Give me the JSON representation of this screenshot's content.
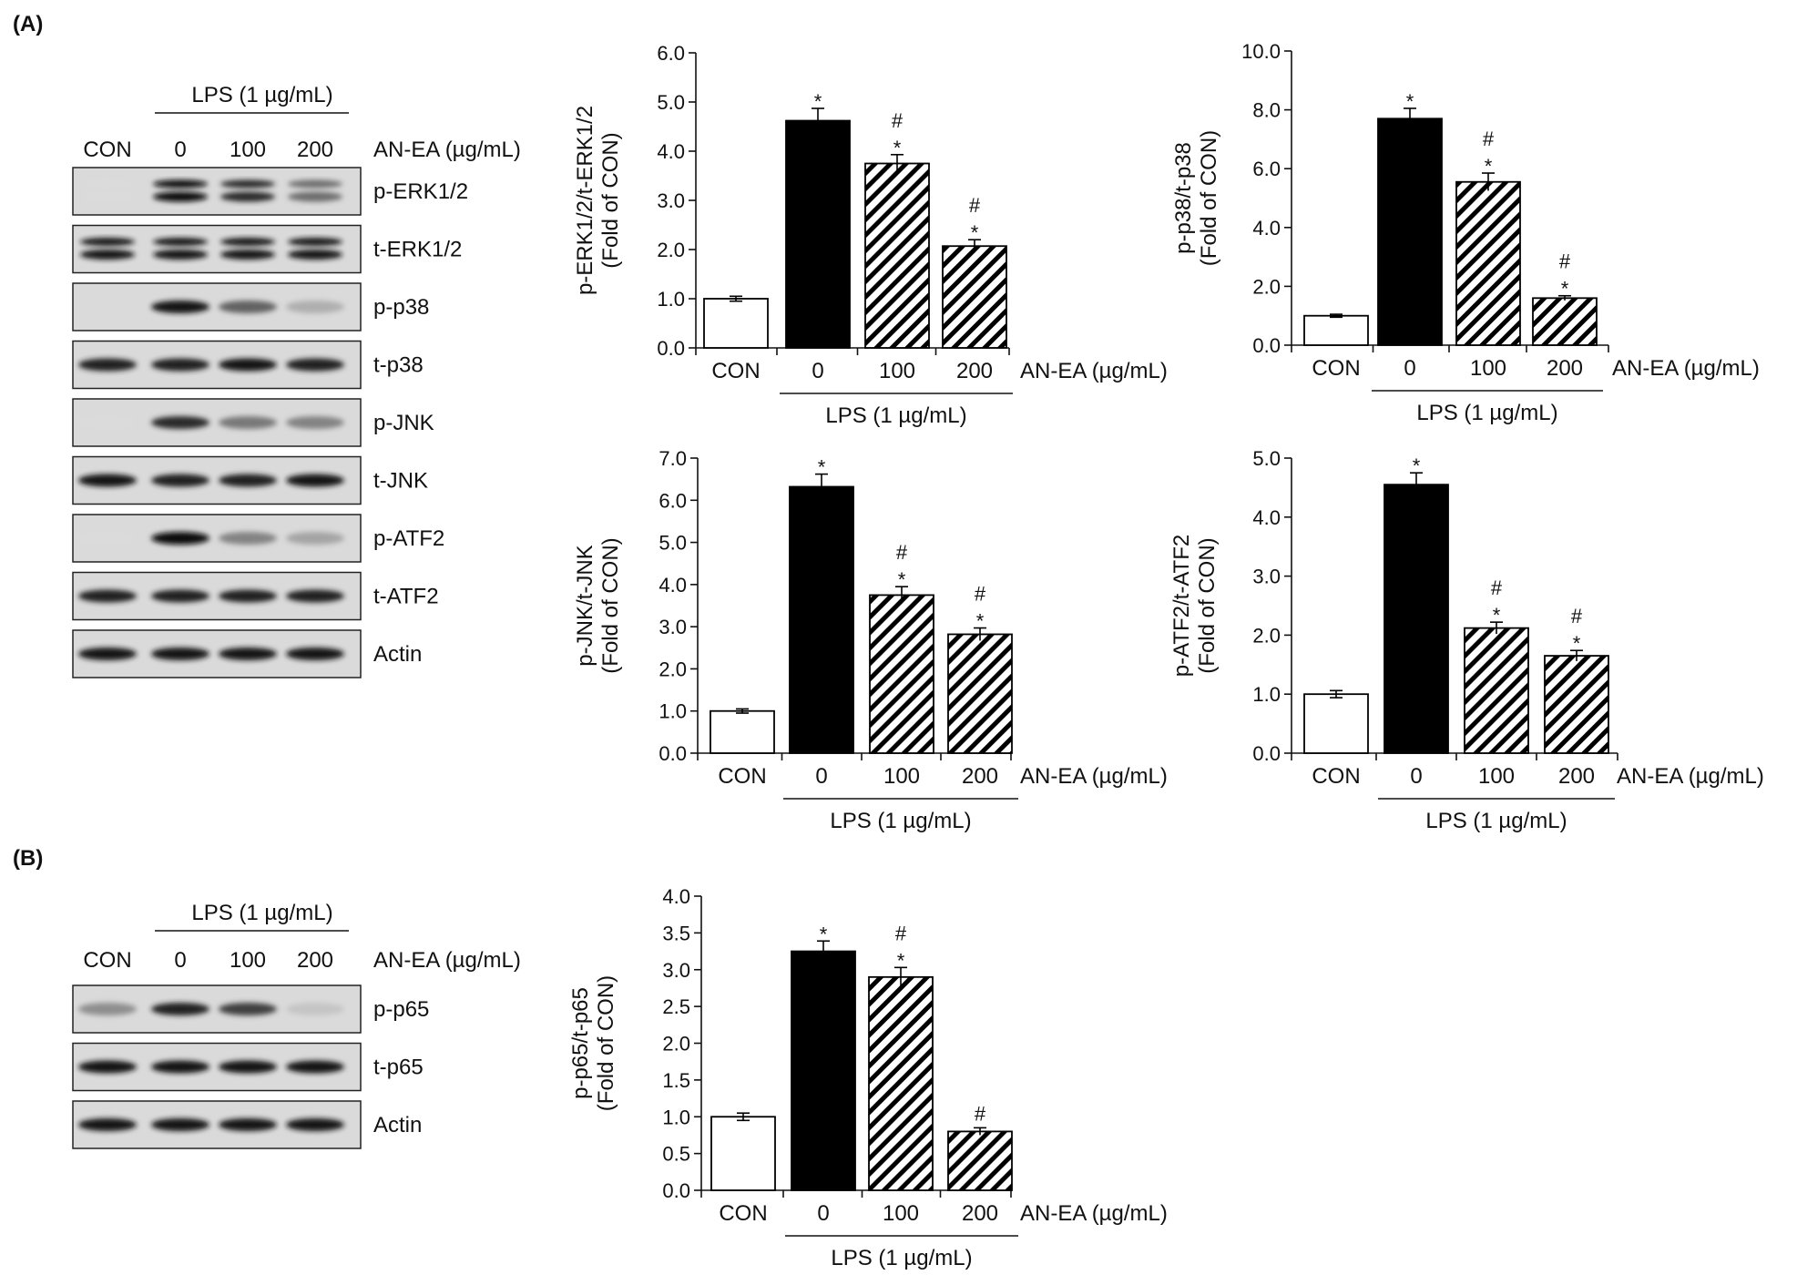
{
  "panels": [
    {
      "label": "(A)"
    },
    {
      "label": "(B)"
    }
  ],
  "blots": [
    {
      "id": "blot-a",
      "group_label": "LPS (1 µg/mL)",
      "lanes": [
        "CON",
        "0",
        "100",
        "200"
      ],
      "treatment_label": "AN-EA (µg/mL)",
      "rows": [
        {
          "label": "p-ERK1/2",
          "band": "doublet",
          "intensity": [
            0.05,
            1.0,
            0.85,
            0.55
          ]
        },
        {
          "label": "t-ERK1/2",
          "band": "doublet",
          "intensity": [
            0.95,
            0.95,
            0.95,
            0.95
          ]
        },
        {
          "label": "p-p38",
          "band": "single",
          "intensity": [
            0.0,
            0.95,
            0.6,
            0.25
          ]
        },
        {
          "label": "t-p38",
          "band": "single",
          "intensity": [
            0.9,
            0.9,
            0.95,
            0.9
          ]
        },
        {
          "label": "p-JNK",
          "band": "single",
          "intensity": [
            0.05,
            0.85,
            0.5,
            0.45
          ]
        },
        {
          "label": "t-JNK",
          "band": "single",
          "intensity": [
            0.95,
            0.9,
            0.9,
            0.95
          ]
        },
        {
          "label": "p-ATF2",
          "band": "single",
          "intensity": [
            0.05,
            1.0,
            0.45,
            0.3
          ]
        },
        {
          "label": "t-ATF2",
          "band": "single",
          "intensity": [
            0.9,
            0.9,
            0.9,
            0.9
          ]
        },
        {
          "label": "Actin",
          "band": "single",
          "intensity": [
            0.95,
            0.95,
            0.95,
            0.95
          ]
        }
      ]
    },
    {
      "id": "blot-b",
      "group_label": "LPS (1 µg/mL)",
      "lanes": [
        "CON",
        "0",
        "100",
        "200"
      ],
      "treatment_label": "AN-EA (µg/mL)",
      "rows": [
        {
          "label": "p-p65",
          "band": "single",
          "intensity": [
            0.4,
            0.9,
            0.75,
            0.15
          ]
        },
        {
          "label": "t-p65",
          "band": "single",
          "intensity": [
            0.95,
            0.95,
            0.95,
            0.95
          ]
        },
        {
          "label": "Actin",
          "band": "single",
          "intensity": [
            0.95,
            0.95,
            0.95,
            0.95
          ]
        }
      ]
    }
  ],
  "chart_data": [
    {
      "id": "erk",
      "type": "bar",
      "ylabel": [
        "p-ERK1/2/t-ERK1/2",
        "(Fold of CON)"
      ],
      "ylim": [
        0,
        6
      ],
      "yticks": [
        "0.0",
        "1.0",
        "2.0",
        "3.0",
        "4.0",
        "5.0",
        "6.0"
      ],
      "categories": [
        "CON",
        "0",
        "100",
        "200"
      ],
      "values": [
        1.0,
        4.62,
        3.75,
        2.07
      ],
      "errors": [
        0.05,
        0.25,
        0.18,
        0.13
      ],
      "bar_styles": [
        "white",
        "black",
        "hatched",
        "hatched"
      ],
      "annotations": [
        "",
        "*",
        "#\n*",
        "#\n*"
      ],
      "treatment_label": "AN-EA (µg/mL)",
      "group_label": "LPS (1 µg/mL)"
    },
    {
      "id": "p38",
      "type": "bar",
      "ylabel": [
        "p-p38/t-p38",
        "(Fold of CON)"
      ],
      "ylim": [
        0,
        10
      ],
      "yticks": [
        "0.0",
        "2.0",
        "4.0",
        "6.0",
        "8.0",
        "10.0"
      ],
      "categories": [
        "CON",
        "0",
        "100",
        "200"
      ],
      "values": [
        1.0,
        7.7,
        5.55,
        1.6
      ],
      "errors": [
        0.05,
        0.35,
        0.3,
        0.08
      ],
      "bar_styles": [
        "white",
        "black",
        "hatched",
        "hatched"
      ],
      "annotations": [
        "",
        "*",
        "#\n*",
        "#\n*"
      ],
      "treatment_label": "AN-EA (µg/mL)",
      "group_label": "LPS (1 µg/mL)"
    },
    {
      "id": "jnk",
      "type": "bar",
      "ylabel": [
        "p-JNK/t-JNK",
        "(Fold of CON)"
      ],
      "ylim": [
        0,
        7
      ],
      "yticks": [
        "0.0",
        "1.0",
        "2.0",
        "3.0",
        "4.0",
        "5.0",
        "6.0",
        "7.0"
      ],
      "categories": [
        "CON",
        "0",
        "100",
        "200"
      ],
      "values": [
        1.0,
        6.32,
        3.75,
        2.82
      ],
      "errors": [
        0.05,
        0.3,
        0.2,
        0.15
      ],
      "bar_styles": [
        "white",
        "black",
        "hatched",
        "hatched"
      ],
      "annotations": [
        "",
        "*",
        "#\n*",
        "#\n*"
      ],
      "treatment_label": "AN-EA (µg/mL)",
      "group_label": "LPS (1 µg/mL)"
    },
    {
      "id": "atf2",
      "type": "bar",
      "ylabel": [
        "p-ATF2/t-ATF2",
        "(Fold of CON)"
      ],
      "ylim": [
        0,
        5
      ],
      "yticks": [
        "0.0",
        "1.0",
        "2.0",
        "3.0",
        "4.0",
        "5.0"
      ],
      "categories": [
        "CON",
        "0",
        "100",
        "200"
      ],
      "values": [
        1.0,
        4.55,
        2.12,
        1.65
      ],
      "errors": [
        0.06,
        0.2,
        0.1,
        0.09
      ],
      "bar_styles": [
        "white",
        "black",
        "hatched",
        "hatched"
      ],
      "annotations": [
        "",
        "*",
        "#\n*",
        "#\n*"
      ],
      "treatment_label": "AN-EA (µg/mL)",
      "group_label": "LPS (1 µg/mL)"
    },
    {
      "id": "p65",
      "type": "bar",
      "ylabel": [
        "p-p65/t-p65",
        "(Fold of CON)"
      ],
      "ylim": [
        0,
        4
      ],
      "yticks": [
        "0.0",
        "0.5",
        "1.0",
        "1.5",
        "2.0",
        "2.5",
        "3.0",
        "3.5",
        "4.0"
      ],
      "categories": [
        "CON",
        "0",
        "100",
        "200"
      ],
      "values": [
        1.0,
        3.25,
        2.9,
        0.8
      ],
      "errors": [
        0.05,
        0.14,
        0.13,
        0.05
      ],
      "bar_styles": [
        "white",
        "black",
        "hatched",
        "hatched"
      ],
      "annotations": [
        "",
        "*",
        "#\n*",
        "#"
      ],
      "treatment_label": "AN-EA (µg/mL)",
      "group_label": "LPS (1 µg/mL)"
    }
  ]
}
